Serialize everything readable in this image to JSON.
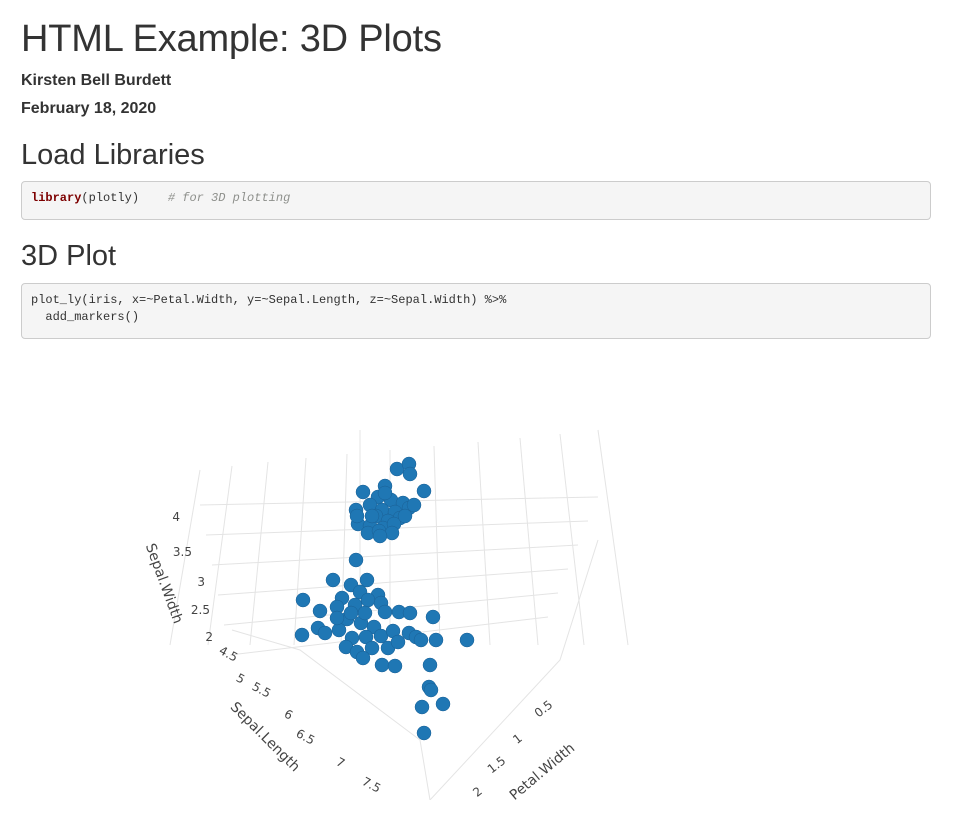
{
  "doc": {
    "title": "HTML Example: 3D Plots",
    "author": "Kirsten Bell Burdett",
    "date": "February 18, 2020"
  },
  "sections": {
    "load": {
      "heading": "Load Libraries",
      "code_fn": "library",
      "code_args": "(plotly)",
      "code_comment": "# for 3D plotting"
    },
    "plot": {
      "heading": "3D Plot",
      "code_line1": "plot_ly(iris, x=~Petal.Width, y=~Sepal.Length, z=~Sepal.Width) %>%",
      "code_line2": "  add_markers()"
    }
  },
  "chart_data": {
    "type": "scatter",
    "marker_color": "#1f77b4",
    "axes": {
      "z": {
        "label": "Sepal.Width",
        "ticks": [
          "2",
          "2.5",
          "3",
          "3.5",
          "4"
        ]
      },
      "y": {
        "label": "Sepal.Length",
        "ticks": [
          "4.5",
          "5",
          "5.5",
          "6",
          "6.5",
          "7",
          "7.5"
        ]
      },
      "x": {
        "label": "Petal.Width",
        "ticks": [
          "0.5",
          "1",
          "1.5",
          "2"
        ]
      }
    }
  }
}
